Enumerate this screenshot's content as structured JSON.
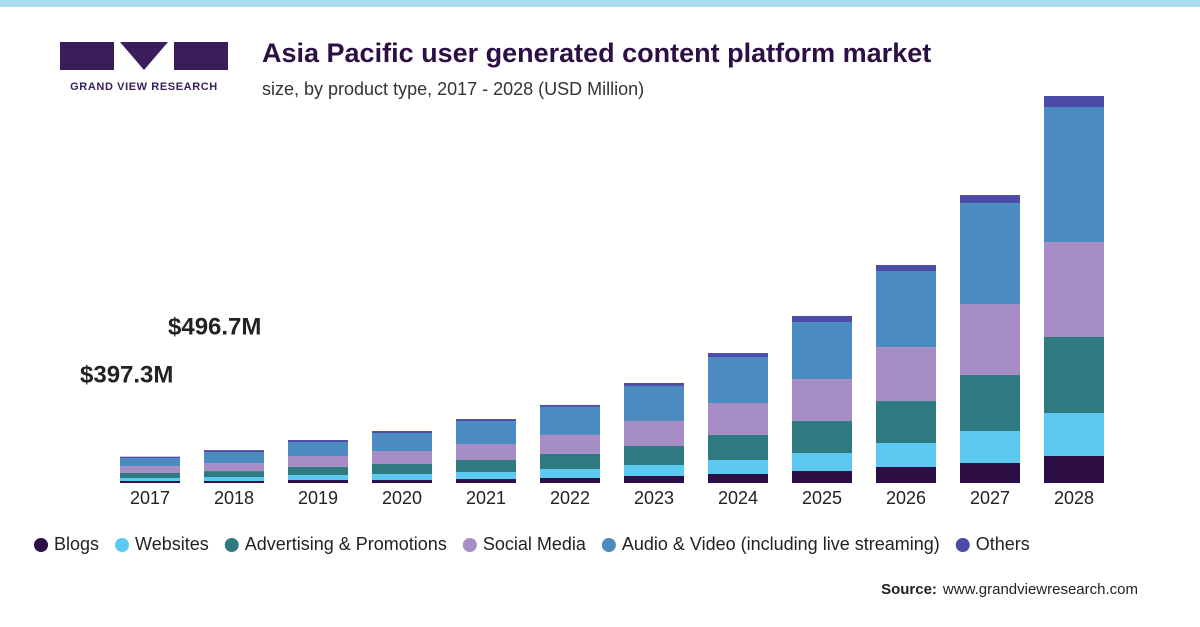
{
  "chart_data": {
    "type": "stacked-bar",
    "title": "Asia Pacific user generated content platform market",
    "subtitle": "size, by product type, 2017 - 2028 (USD Million)",
    "logo_text": "GRAND VIEW RESEARCH",
    "categories": [
      "2017",
      "2018",
      "2019",
      "2020",
      "2021",
      "2022",
      "2023",
      "2024",
      "2025",
      "2026",
      "2027",
      "2028"
    ],
    "series": [
      {
        "name": "Blogs",
        "color": "#2d0f45",
        "values": [
          30,
          30,
          45,
          45,
          60,
          76,
          106,
          136,
          181,
          242,
          302,
          408
        ]
      },
      {
        "name": "Websites",
        "color": "#5bc9f0",
        "values": [
          45,
          60,
          76,
          91,
          106,
          136,
          166,
          211,
          272,
          362,
          483,
          649
        ]
      },
      {
        "name": "Advertising & Promotions",
        "color": "#2e7a80",
        "values": [
          76,
          90,
          121,
          151,
          181,
          227,
          287,
          378,
          483,
          634,
          846,
          1148
        ]
      },
      {
        "name": "Social Media",
        "color": "#a68dc6",
        "values": [
          106,
          121,
          166,
          196,
          242,
          287,
          378,
          483,
          634,
          815,
          1072,
          1435
        ]
      },
      {
        "name": "Audio & Video (including live streaming)",
        "color": "#4b8bbf",
        "values": [
          121,
          166,
          211,
          272,
          347,
          423,
          529,
          695,
          861,
          1148,
          1525,
          2039
        ]
      },
      {
        "name": "Others",
        "color": "#4b4ba8",
        "values": [
          19.3,
          29.7,
          30,
          30,
          30,
          30,
          45,
          60,
          91,
          91,
          121,
          166
        ]
      }
    ],
    "annotations": [
      "$397.3M",
      "$496.7M"
    ],
    "source_label": "Source:",
    "source": "www.grandviewresearch.com"
  }
}
